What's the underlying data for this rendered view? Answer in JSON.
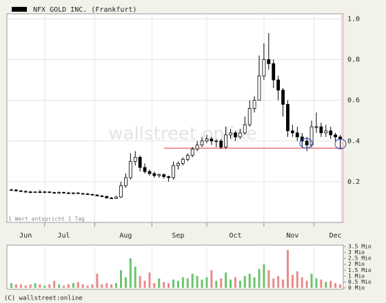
{
  "chart_data": {
    "type": "candlestick",
    "name": "NFX GOLD INC. (Frankfurt)",
    "note": "1 Wert entspricht 1 Tag",
    "watermark": "wallstreet online",
    "copyright": "(C) wallstreet:online",
    "categories": [
      null,
      null,
      null,
      "Jun",
      null,
      null,
      null,
      null,
      null,
      null,
      null,
      "Jul",
      null,
      null,
      null,
      null,
      null,
      null,
      null,
      null,
      null,
      null,
      null,
      null,
      "Aug",
      null,
      null,
      null,
      null,
      null,
      null,
      null,
      null,
      null,
      null,
      "Sep",
      null,
      null,
      null,
      null,
      null,
      null,
      null,
      null,
      null,
      null,
      null,
      "Oct",
      null,
      null,
      null,
      null,
      null,
      null,
      null,
      null,
      null,
      null,
      null,
      "Nov",
      null,
      null,
      null,
      null,
      null,
      null,
      null,
      null,
      "Dec",
      null
    ],
    "open": [
      0.16,
      0.16,
      0.155,
      0.152,
      0.15,
      0.148,
      0.15,
      0.148,
      0.15,
      0.147,
      0.145,
      0.148,
      0.145,
      0.143,
      0.145,
      0.142,
      0.14,
      0.138,
      0.135,
      0.13,
      0.128,
      0.12,
      0.118,
      0.125,
      0.18,
      0.22,
      0.3,
      0.32,
      0.27,
      0.25,
      0.24,
      0.23,
      0.235,
      0.225,
      0.22,
      0.28,
      0.29,
      0.31,
      0.33,
      0.36,
      0.38,
      0.4,
      0.41,
      0.4,
      0.4,
      0.37,
      0.43,
      0.44,
      0.42,
      0.44,
      0.48,
      0.56,
      0.6,
      0.72,
      0.8,
      0.78,
      0.7,
      0.65,
      0.58,
      0.45,
      0.44,
      0.42,
      0.4,
      0.38,
      0.47,
      0.47,
      0.44,
      0.45,
      0.43,
      0.42
    ],
    "high": [
      0.165,
      0.162,
      0.16,
      0.158,
      0.155,
      0.152,
      0.16,
      0.155,
      0.152,
      0.15,
      0.152,
      0.15,
      0.15,
      0.148,
      0.148,
      0.145,
      0.145,
      0.14,
      0.138,
      0.135,
      0.13,
      0.125,
      0.13,
      0.2,
      0.24,
      0.34,
      0.35,
      0.33,
      0.29,
      0.26,
      0.25,
      0.24,
      0.24,
      0.23,
      0.3,
      0.3,
      0.32,
      0.34,
      0.37,
      0.4,
      0.42,
      0.43,
      0.42,
      0.41,
      0.41,
      0.47,
      0.46,
      0.45,
      0.46,
      0.52,
      0.6,
      0.62,
      0.82,
      0.88,
      0.93,
      0.8,
      0.72,
      0.66,
      0.6,
      0.48,
      0.47,
      0.44,
      0.42,
      0.5,
      0.54,
      0.49,
      0.48,
      0.47,
      0.44,
      0.43
    ],
    "low": [
      0.155,
      0.152,
      0.15,
      0.148,
      0.145,
      0.145,
      0.145,
      0.143,
      0.145,
      0.142,
      0.14,
      0.142,
      0.14,
      0.138,
      0.14,
      0.138,
      0.135,
      0.132,
      0.128,
      0.125,
      0.118,
      0.115,
      0.115,
      0.12,
      0.17,
      0.21,
      0.28,
      0.25,
      0.24,
      0.23,
      0.22,
      0.22,
      0.215,
      0.2,
      0.21,
      0.26,
      0.28,
      0.3,
      0.32,
      0.35,
      0.37,
      0.39,
      0.38,
      0.37,
      0.36,
      0.36,
      0.41,
      0.4,
      0.41,
      0.43,
      0.47,
      0.54,
      0.6,
      0.7,
      0.75,
      0.66,
      0.6,
      0.52,
      0.42,
      0.42,
      0.4,
      0.37,
      0.35,
      0.37,
      0.44,
      0.42,
      0.42,
      0.41,
      0.4,
      0.36
    ],
    "close": [
      0.16,
      0.155,
      0.152,
      0.15,
      0.148,
      0.15,
      0.148,
      0.15,
      0.147,
      0.145,
      0.148,
      0.145,
      0.143,
      0.145,
      0.142,
      0.14,
      0.138,
      0.135,
      0.13,
      0.128,
      0.12,
      0.118,
      0.125,
      0.18,
      0.22,
      0.3,
      0.32,
      0.27,
      0.25,
      0.24,
      0.23,
      0.235,
      0.225,
      0.22,
      0.28,
      0.29,
      0.31,
      0.33,
      0.36,
      0.38,
      0.4,
      0.41,
      0.4,
      0.4,
      0.37,
      0.43,
      0.44,
      0.42,
      0.44,
      0.48,
      0.56,
      0.6,
      0.72,
      0.8,
      0.78,
      0.7,
      0.65,
      0.58,
      0.45,
      0.44,
      0.42,
      0.4,
      0.38,
      0.47,
      0.47,
      0.44,
      0.45,
      0.43,
      0.42,
      0.41
    ],
    "ylim": [
      0,
      1.025
    ],
    "yticks": [
      {
        "value": 1,
        "label": "1.0"
      },
      0.8,
      0.6,
      0.4,
      0.2
    ],
    "grid": true,
    "support_line": 0.365,
    "support_color": "#e03030",
    "color": "#000000",
    "volume": {
      "values": [
        0.4,
        0.3,
        0.3,
        0.2,
        0.3,
        0.4,
        0.3,
        0.2,
        0.3,
        0.6,
        0.3,
        0.2,
        0.3,
        0.4,
        0.5,
        0.3,
        0.2,
        0.3,
        1.2,
        0.3,
        0.4,
        0.3,
        0.4,
        1.5,
        0.9,
        2.5,
        1.8,
        1.0,
        0.6,
        1.3,
        0.4,
        0.8,
        0.5,
        0.4,
        0.7,
        0.6,
        0.9,
        0.8,
        1.2,
        1.0,
        0.7,
        0.9,
        1.5,
        0.6,
        0.8,
        1.3,
        0.7,
        0.9,
        0.6,
        1.0,
        1.2,
        0.9,
        1.6,
        2.0,
        1.5,
        0.8,
        1.0,
        0.7,
        3.2,
        1.1,
        1.4,
        0.9,
        0.6,
        1.2,
        0.8,
        0.7,
        0.5,
        0.6,
        0.4,
        0.3
      ],
      "ylim": [
        0,
        3.5
      ],
      "yticks": [
        {
          "value": 3.5,
          "label": "3.5 Mio"
        },
        {
          "value": 3,
          "label": "3 Mio"
        },
        {
          "value": 2.5,
          "label": "2.5 Mio"
        },
        {
          "value": 2,
          "label": "2 Mio"
        },
        {
          "value": 1.5,
          "label": "1.5 Mio"
        },
        {
          "value": 1,
          "label": "1 Mio"
        },
        {
          "value": 0.5,
          "label": "0.5 Mio"
        },
        {
          "value": 0,
          "label": "0 Mio"
        }
      ],
      "up_color": "#6cc46c",
      "down_color": "#e88a8a"
    }
  }
}
